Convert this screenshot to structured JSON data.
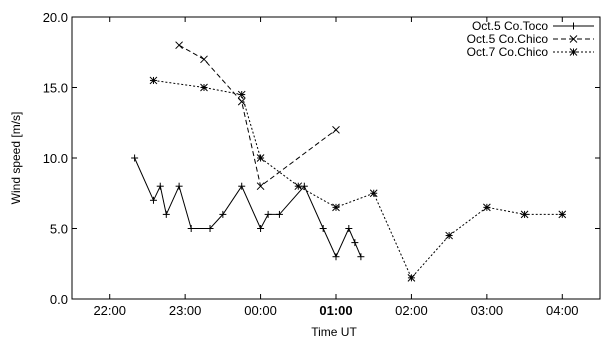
{
  "chart_data": {
    "type": "line",
    "title": "",
    "xlabel": "Time UT",
    "ylabel": "Wind speed [m/s]",
    "x_unit": "hours UT (24.0 = 00:00 next day)",
    "xlim": [
      21.5,
      28.5
    ],
    "ylim": [
      0,
      20
    ],
    "x_ticks": [
      {
        "value": 22,
        "label": "22:00"
      },
      {
        "value": 23,
        "label": "23:00"
      },
      {
        "value": 24,
        "label": "00:00"
      },
      {
        "value": 25,
        "label": "01:00"
      },
      {
        "value": 26,
        "label": "02:00"
      },
      {
        "value": 27,
        "label": "03:00"
      },
      {
        "value": 28,
        "label": "04:00"
      }
    ],
    "y_ticks": [
      {
        "value": 0,
        "label": "0.0"
      },
      {
        "value": 5,
        "label": "5.0"
      },
      {
        "value": 10,
        "label": "10.0"
      },
      {
        "value": 15,
        "label": "15.0"
      },
      {
        "value": 20,
        "label": "20.0"
      }
    ],
    "grid": false,
    "legend_position": "top-right",
    "series": [
      {
        "name": "Oct.5 Co.Toco",
        "marker": "plus",
        "dash": "solid",
        "x": [
          22.33,
          22.58,
          22.67,
          22.75,
          22.92,
          23.08,
          23.33,
          23.5,
          23.75,
          24.0,
          24.1,
          24.25,
          24.58,
          24.83,
          25.0,
          25.17,
          25.25,
          25.33
        ],
        "y": [
          10,
          7,
          8,
          6,
          8,
          5,
          5,
          6,
          8,
          5,
          6,
          6,
          8,
          5,
          3,
          5,
          4,
          3
        ]
      },
      {
        "name": "Oct.5 Co.Chico",
        "marker": "cross",
        "dash": "dashed",
        "x": [
          22.92,
          23.25,
          23.75,
          24.0,
          25.0
        ],
        "y": [
          18,
          17,
          14,
          8,
          12
        ]
      },
      {
        "name": "Oct.7 Co.Chico",
        "marker": "star",
        "dash": "dotted",
        "x": [
          22.58,
          23.25,
          23.75,
          24.0,
          24.5,
          25.0,
          25.5,
          26.0,
          26.5,
          27.0,
          27.5,
          28.0
        ],
        "y": [
          15.5,
          15,
          14.5,
          10,
          8,
          6.5,
          7.5,
          1.5,
          4.5,
          6.5,
          6,
          6
        ]
      }
    ]
  }
}
